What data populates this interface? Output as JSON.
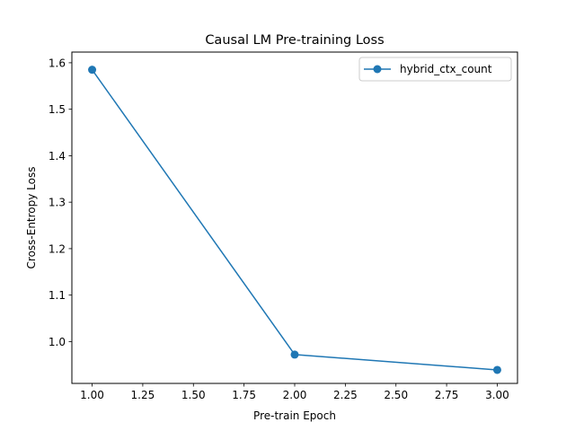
{
  "chart_data": {
    "type": "line",
    "title": "Causal LM Pre-training Loss",
    "xlabel": "Pre-train Epoch",
    "ylabel": "Cross-Entropy Loss",
    "xlim": [
      0.9,
      3.1
    ],
    "ylim": [
      0.91,
      1.623
    ],
    "xticks": [
      1.0,
      1.25,
      1.5,
      1.75,
      2.0,
      2.25,
      2.5,
      2.75,
      3.0
    ],
    "xtick_labels": [
      "1.00",
      "1.25",
      "1.50",
      "1.75",
      "2.00",
      "2.25",
      "2.50",
      "2.75",
      "3.00"
    ],
    "yticks": [
      1.0,
      1.1,
      1.2,
      1.3,
      1.4,
      1.5,
      1.6
    ],
    "ytick_labels": [
      "1.0",
      "1.1",
      "1.2",
      "1.3",
      "1.4",
      "1.5",
      "1.6"
    ],
    "grid": false,
    "legend_position": "top-right",
    "series": [
      {
        "name": "hybrid_ctx_count",
        "color": "#1f77b4",
        "marker": "circle",
        "x": [
          1,
          2,
          3
        ],
        "y": [
          1.585,
          0.972,
          0.939
        ]
      }
    ]
  }
}
